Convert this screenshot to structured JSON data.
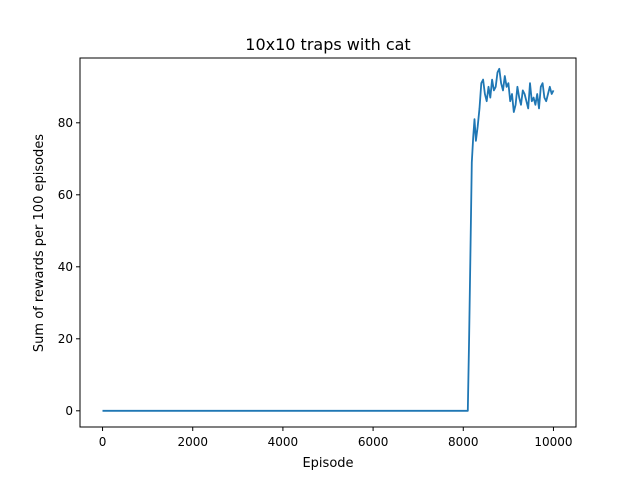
{
  "chart_data": {
    "type": "line",
    "title": "10x10 traps with cat",
    "xlabel": "Episode",
    "ylabel": "Sum of rewards per 100 episodes",
    "xlim": [
      -500,
      10500
    ],
    "ylim": [
      -4.5,
      98
    ],
    "xticks": [
      0,
      2000,
      4000,
      6000,
      8000,
      10000
    ],
    "xtick_labels": [
      "0",
      "2000",
      "4000",
      "6000",
      "8000",
      "10000"
    ],
    "yticks": [
      0,
      20,
      40,
      60,
      80
    ],
    "ytick_labels": [
      "0",
      "20",
      "40",
      "60",
      "80"
    ],
    "grid": false,
    "legend": "none",
    "series": [
      {
        "color": "#1f77b4",
        "x": [
          0,
          8100,
          8130,
          8160,
          8190,
          8220,
          8250,
          8280,
          8320,
          8360,
          8400,
          8440,
          8480,
          8520,
          8560,
          8600,
          8640,
          8680,
          8720,
          8760,
          8800,
          8840,
          8880,
          8920,
          8960,
          9000,
          9040,
          9080,
          9120,
          9160,
          9200,
          9240,
          9280,
          9320,
          9360,
          9400,
          9440,
          9480,
          9520,
          9560,
          9600,
          9640,
          9680,
          9720,
          9760,
          9800,
          9840,
          9880,
          9920,
          9960,
          10000
        ],
        "y": [
          0,
          0,
          20,
          45,
          69,
          76,
          81,
          75,
          79,
          84,
          91,
          92,
          88,
          86,
          90,
          87,
          92,
          89,
          90,
          94,
          95,
          91,
          89,
          93,
          90,
          91,
          86,
          88,
          83,
          85,
          90,
          87,
          85,
          89,
          88,
          86,
          84,
          91,
          86,
          87,
          85,
          88,
          84,
          90,
          91,
          87,
          86,
          88,
          90,
          88,
          89
        ]
      }
    ]
  }
}
